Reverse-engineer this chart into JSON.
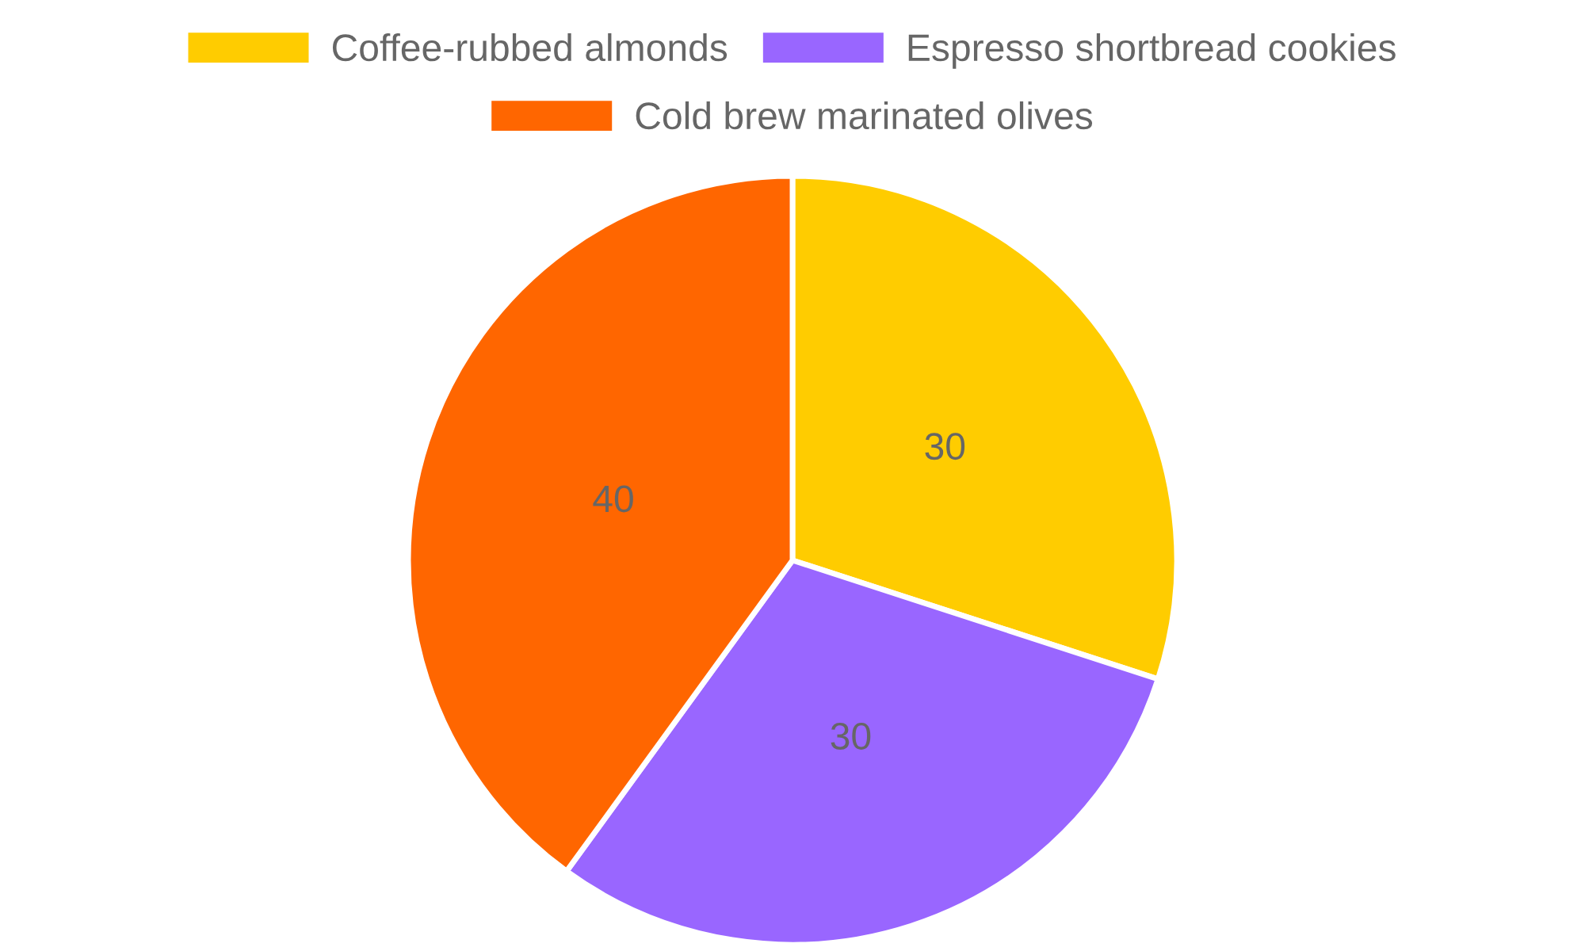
{
  "chart_data": {
    "type": "pie",
    "categories": [
      "Coffee-rubbed almonds",
      "Espresso shortbread cookies",
      "Cold brew marinated olives"
    ],
    "values": [
      30,
      30,
      40
    ],
    "colors": [
      "#ffcc00",
      "#9966ff",
      "#ff6600"
    ],
    "data_labels": true,
    "legend": "top"
  }
}
